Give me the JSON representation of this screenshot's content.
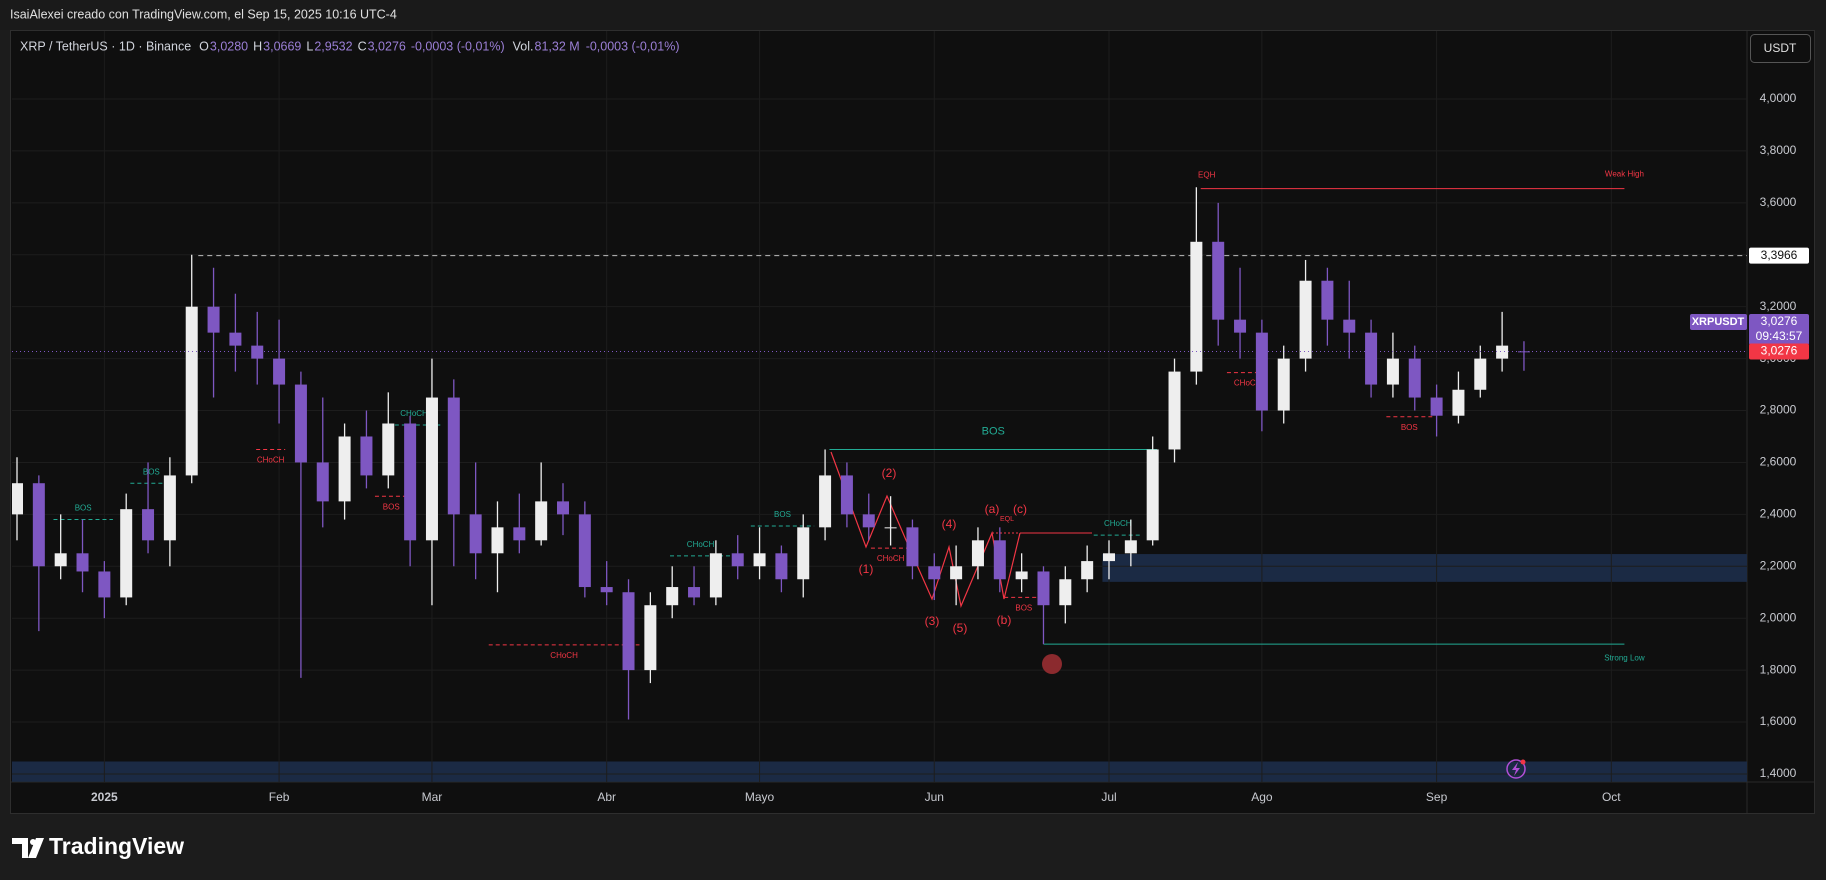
{
  "author": "IsaiAlexei creado con TradingView.com, el Sep 15, 2025 10:16 UTC-4",
  "header": {
    "symbol": "XRP / TetherUS · 1D · Binance",
    "ohlc": [
      {
        "key": "O",
        "text": "3,0280"
      },
      {
        "key": "H",
        "text": "3,0669"
      },
      {
        "key": "L",
        "text": "2,9532"
      },
      {
        "key": "C",
        "text": "3,0276"
      }
    ],
    "change": "-0,0003 (-0,01%)",
    "volume_key": "Vol.",
    "volume": "81,32 M",
    "volume_change": "-0,0003 (-0,01%)"
  },
  "currency": "USDT",
  "price_tags": {
    "symbol": "XRPUSDT",
    "price": "3,0276",
    "countdown": "09:43:57"
  },
  "logo": "TradingView",
  "chart_data": {
    "type": "candlestick",
    "categories": [
      null,
      null,
      null,
      null,
      "2025",
      null,
      null,
      null,
      null,
      null,
      null,
      null,
      "Feb",
      null,
      null,
      null,
      null,
      null,
      null,
      "Mar",
      null,
      null,
      null,
      null,
      null,
      null,
      null,
      "Abr",
      null,
      null,
      null,
      null,
      null,
      null,
      "Mayo",
      null,
      null,
      null,
      null,
      null,
      null,
      null,
      "Jun",
      null,
      null,
      null,
      null,
      null,
      null,
      null,
      "Jul",
      null,
      null,
      null,
      null,
      null,
      null,
      "Ago",
      null,
      null,
      null,
      null,
      null,
      null,
      null,
      "Sep",
      null,
      null,
      null,
      null,
      null,
      null,
      null,
      "Oct"
    ],
    "open": [
      2.4,
      2.52,
      2.2,
      2.25,
      2.18,
      2.08,
      2.42,
      2.3,
      2.55,
      3.2,
      3.1,
      3.05,
      3.0,
      2.9,
      2.6,
      2.45,
      2.7,
      2.55,
      2.75,
      2.3,
      2.85,
      2.4,
      2.25,
      2.35,
      2.3,
      2.45,
      2.4,
      2.12,
      2.1,
      1.8,
      2.05,
      2.12,
      2.08,
      2.25,
      2.2,
      2.25,
      2.15,
      2.35,
      2.55,
      2.4,
      2.35,
      2.35,
      2.2,
      2.15,
      2.2,
      2.3,
      2.15,
      2.18,
      2.05,
      2.15,
      2.22,
      2.25,
      2.3,
      2.65,
      2.95,
      3.45,
      3.15,
      3.1,
      2.8,
      3.0,
      3.3,
      3.15,
      3.1,
      2.9,
      3.0,
      2.85,
      2.78,
      2.88,
      3.0,
      3.028,
      null,
      null,
      null,
      null
    ],
    "high": [
      2.62,
      2.55,
      2.4,
      2.38,
      2.22,
      2.48,
      2.6,
      2.62,
      3.4,
      3.35,
      3.25,
      3.18,
      3.15,
      2.95,
      2.85,
      2.75,
      2.8,
      2.87,
      2.78,
      3.0,
      2.92,
      2.6,
      2.45,
      2.48,
      2.6,
      2.52,
      2.45,
      2.22,
      2.15,
      2.1,
      2.2,
      2.2,
      2.3,
      2.32,
      2.35,
      2.28,
      2.4,
      2.65,
      2.6,
      2.48,
      2.47,
      2.38,
      2.25,
      2.28,
      2.35,
      2.35,
      2.25,
      2.2,
      2.2,
      2.28,
      2.3,
      2.38,
      2.7,
      3.0,
      3.66,
      3.6,
      3.35,
      3.15,
      3.05,
      3.38,
      3.35,
      3.3,
      3.15,
      3.1,
      3.05,
      2.9,
      2.95,
      3.05,
      3.18,
      3.0669,
      null,
      null,
      null,
      null
    ],
    "low": [
      2.3,
      1.95,
      2.15,
      2.1,
      2.0,
      2.05,
      2.25,
      2.2,
      2.52,
      2.85,
      2.95,
      2.9,
      2.75,
      1.77,
      2.35,
      2.38,
      2.5,
      2.5,
      2.2,
      2.05,
      2.2,
      2.15,
      2.1,
      2.25,
      2.28,
      2.32,
      2.08,
      2.05,
      1.61,
      1.75,
      2.0,
      2.05,
      2.05,
      2.15,
      2.15,
      2.1,
      2.08,
      2.3,
      2.35,
      2.3,
      2.28,
      2.15,
      2.07,
      2.05,
      2.15,
      2.1,
      2.1,
      1.9,
      1.98,
      2.1,
      2.15,
      2.2,
      2.28,
      2.6,
      2.9,
      3.05,
      3.0,
      2.72,
      2.75,
      2.95,
      3.05,
      3.0,
      2.85,
      2.85,
      2.8,
      2.7,
      2.75,
      2.85,
      2.95,
      2.9532,
      null,
      null,
      null,
      null
    ],
    "close": [
      2.52,
      2.2,
      2.25,
      2.18,
      2.08,
      2.42,
      2.3,
      2.55,
      3.2,
      3.1,
      3.05,
      3.0,
      2.9,
      2.6,
      2.45,
      2.7,
      2.55,
      2.75,
      2.3,
      2.85,
      2.4,
      2.25,
      2.35,
      2.3,
      2.45,
      2.4,
      2.12,
      2.1,
      1.8,
      2.05,
      2.12,
      2.08,
      2.25,
      2.2,
      2.25,
      2.15,
      2.35,
      2.55,
      2.4,
      2.35,
      2.35,
      2.2,
      2.15,
      2.2,
      2.3,
      2.15,
      2.18,
      2.05,
      2.15,
      2.22,
      2.25,
      2.3,
      2.65,
      2.95,
      3.45,
      3.15,
      3.1,
      2.8,
      3.0,
      3.3,
      3.15,
      3.1,
      2.9,
      3.0,
      2.85,
      2.78,
      2.88,
      3.0,
      3.05,
      3.0276,
      null,
      null,
      null,
      null
    ],
    "up_color": "#eeeeee",
    "down_color": "#7e57c2",
    "ylim": [
      1.369,
      4.262
    ],
    "yticks": [
      {
        "value": 1.4,
        "label": "1,4000"
      },
      {
        "value": 1.6,
        "label": "1,6000"
      },
      {
        "value": 1.8,
        "label": "1,8000"
      },
      {
        "value": 2.0,
        "label": "2,0000"
      },
      {
        "value": 2.2,
        "label": "2,2000"
      },
      {
        "value": 2.4,
        "label": "2,4000"
      },
      {
        "value": 2.6,
        "label": "2,6000"
      },
      {
        "value": 2.8,
        "label": "2,8000"
      },
      {
        "value": 3.0,
        "label": "3,0000"
      },
      {
        "value": 3.2,
        "label": "3,2000"
      },
      {
        "value": 3.4,
        "label": "3,4000"
      },
      {
        "value": 3.6,
        "label": "3,6000"
      },
      {
        "value": 3.8,
        "label": "3,8000"
      },
      {
        "value": 4.0,
        "label": "4,0000"
      }
    ],
    "grid": true,
    "reference_price": {
      "value": 3.3966,
      "label": "3,3966"
    },
    "last_price": {
      "value": 3.0276,
      "label": "3,0276"
    },
    "zones": [
      {
        "from": 2.14,
        "to": 2.247
      },
      {
        "from": 1.37,
        "to": 1.448
      }
    ],
    "zone_color": "#1b2a44",
    "structure": [
      {
        "text": "BOS",
        "level": 2.38,
        "color": "#22ab94"
      },
      {
        "text": "BOS",
        "level": 2.52,
        "color": "#22ab94"
      },
      {
        "text": "CHoCH",
        "level": 2.65,
        "color": "#f23645"
      },
      {
        "text": "CHoCH",
        "level": 2.744,
        "color": "#22ab94"
      },
      {
        "text": "BOS",
        "level": 2.47,
        "color": "#f23645"
      },
      {
        "text": "CHoCH",
        "level": 1.897,
        "color": "#f23645"
      },
      {
        "text": "CHoCH",
        "level": 2.24,
        "color": "#22ab94"
      },
      {
        "text": "BOS",
        "level": 2.355,
        "color": "#22ab94"
      },
      {
        "text": "BOS",
        "level": 2.65,
        "color": "#22ab94"
      },
      {
        "text": "CHoCH",
        "level": 2.27,
        "color": "#f23645"
      },
      {
        "text": "BOS",
        "level": 2.08,
        "color": "#f23645"
      },
      {
        "text": "CHoCH",
        "level": 2.32,
        "color": "#22ab94"
      },
      {
        "text": "CHoCH",
        "level": 2.946,
        "color": "#f23645"
      },
      {
        "text": "BOS",
        "level": 2.776,
        "color": "#f23645"
      }
    ],
    "levels": [
      {
        "text": "Weak High",
        "tag": "EQH",
        "level": 3.655,
        "color": "#f23645"
      },
      {
        "text": "Strong Low",
        "level": 1.9,
        "color": "#22ab94"
      }
    ],
    "equal_lows": "EQL",
    "waves": [
      "(1)",
      "(2)",
      "(3)",
      "(4)",
      "(5)",
      "(a)",
      "(b)",
      "(c)"
    ],
    "wave_color": "#f23645"
  }
}
